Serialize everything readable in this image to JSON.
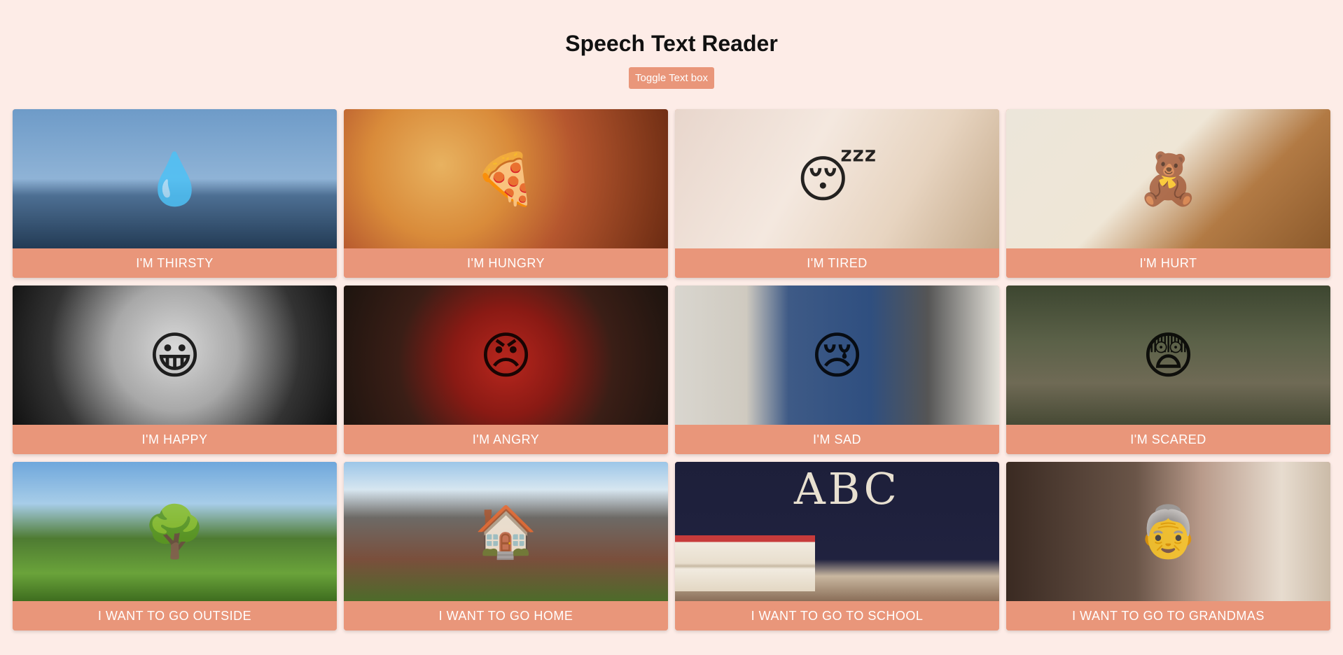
{
  "header": {
    "title": "Speech Text Reader",
    "toggle_label": "Toggle Text box"
  },
  "cards": [
    {
      "label": "I'M THIRSTY",
      "image": "glass-of-water",
      "icon": "💧"
    },
    {
      "label": "I'M HUNGRY",
      "image": "pizza-slice",
      "icon": "🍕"
    },
    {
      "label": "I'M TIRED",
      "image": "sleeping-child",
      "icon": "😴"
    },
    {
      "label": "I'M HURT",
      "image": "bandaged-teddy-bear",
      "icon": "🧸"
    },
    {
      "label": "I'M HAPPY",
      "image": "smiling-boy",
      "icon": "😀"
    },
    {
      "label": "I'M ANGRY",
      "image": "angry-child",
      "icon": "😠"
    },
    {
      "label": "I'M SAD",
      "image": "sad-child",
      "icon": "😢"
    },
    {
      "label": "I'M SCARED",
      "image": "scared-child",
      "icon": "😨"
    },
    {
      "label": "I WANT TO GO OUTSIDE",
      "image": "park",
      "icon": "🌳"
    },
    {
      "label": "I WANT TO GO HOME",
      "image": "house",
      "icon": "🏠"
    },
    {
      "label": "I WANT TO GO TO SCHOOL",
      "image": "chalkboard-books",
      "chalk_text": "ABC"
    },
    {
      "label": "I WANT TO GO TO GRANDMAS",
      "image": "grandma-and-child",
      "icon": "👵"
    }
  ],
  "colors": {
    "background": "#fdece7",
    "accent": "#e9967a"
  }
}
